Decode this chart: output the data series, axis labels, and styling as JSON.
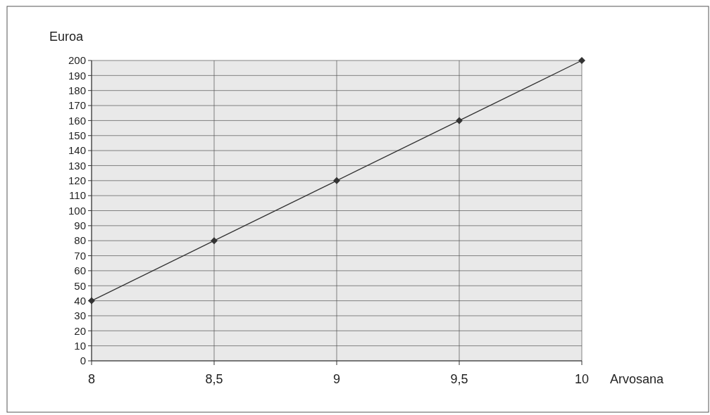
{
  "chart_data": {
    "type": "line",
    "xlabel": "Arvosana",
    "ylabel": "Euroa",
    "x": [
      8,
      8.5,
      9,
      9.5,
      10
    ],
    "series": [
      {
        "color": "#333333",
        "values": [
          40,
          80,
          120,
          160,
          200
        ]
      }
    ],
    "xlim": [
      8,
      10
    ],
    "xticks": [
      8,
      {
        "value": 8.5,
        "label": "8,5"
      },
      9,
      {
        "value": 9.5,
        "label": "9,5"
      },
      10
    ],
    "ylim": [
      0,
      200
    ],
    "yticks": [
      0,
      10,
      20,
      30,
      40,
      50,
      60,
      70,
      80,
      90,
      100,
      110,
      120,
      130,
      140,
      150,
      160,
      170,
      180,
      190,
      200
    ],
    "grid": true,
    "marker": "diamond",
    "line_style": "solid"
  }
}
